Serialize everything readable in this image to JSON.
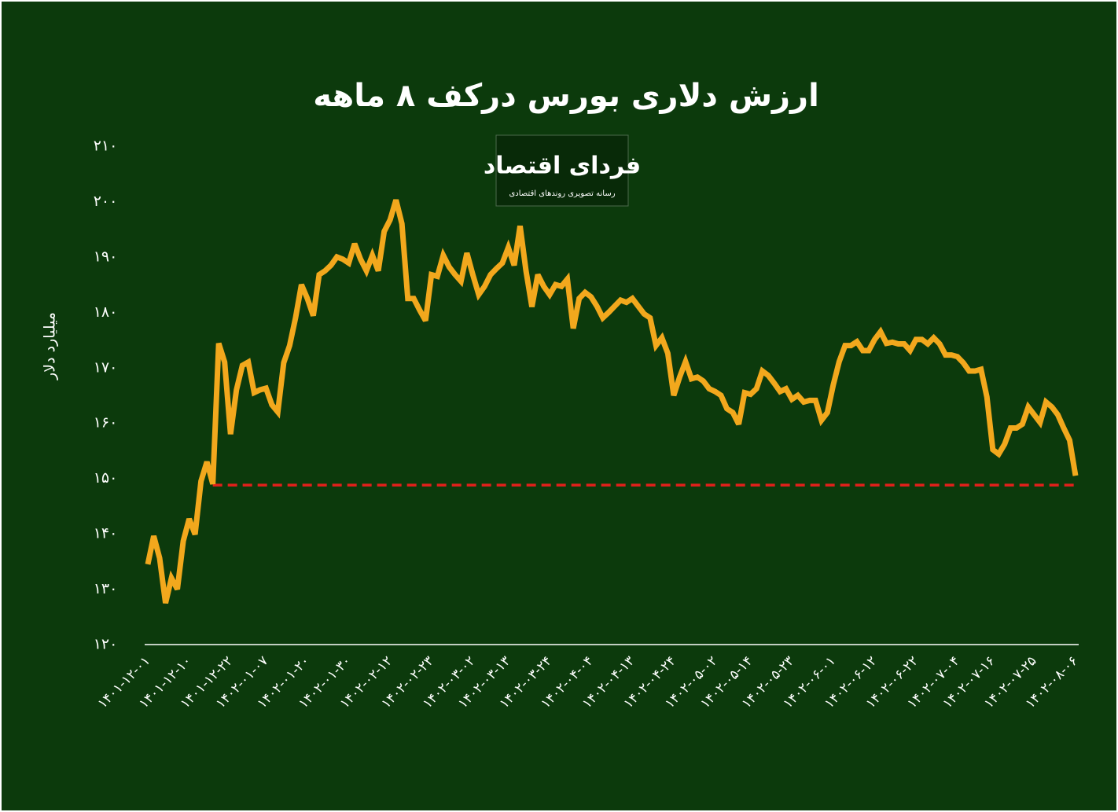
{
  "chart_data": {
    "type": "line",
    "title": "ارزش دلاری بورس درکف ۸ ماهه",
    "y_label": "میلیارد دلار",
    "logo": {
      "title": "فردای اقتصاد",
      "subtitle": "رسانه تصویری روندهای اقتصادی"
    },
    "color": "#f2a81d",
    "background": "#0c3a0c",
    "ylim": [
      120,
      210
    ],
    "yticks": [
      {
        "value": 120,
        "label": "۱۲۰"
      },
      {
        "value": 130,
        "label": "۱۳۰"
      },
      {
        "value": 140,
        "label": "۱۴۰"
      },
      {
        "value": 150,
        "label": "۱۵۰"
      },
      {
        "value": 160,
        "label": "۱۶۰"
      },
      {
        "value": 170,
        "label": "۱۷۰"
      },
      {
        "value": 180,
        "label": "۱۸۰"
      },
      {
        "value": 190,
        "label": "۱۹۰"
      },
      {
        "value": 200,
        "label": "۲۰۰"
      },
      {
        "value": 210,
        "label": "۲۱۰"
      }
    ],
    "reference_line": {
      "value": 148.8,
      "start_index": 11,
      "color": "#e3201b"
    },
    "categories": [
      "۱۴۰۱-۱۲-۰۱",
      null,
      null,
      null,
      null,
      null,
      null,
      "۱۴۰۱-۱۲-۱۰",
      null,
      null,
      null,
      null,
      null,
      null,
      "۱۴۰۱-۱۲-۲۲",
      null,
      null,
      null,
      null,
      null,
      "۱۴۰۲-۰۱-۰۷",
      null,
      null,
      null,
      null,
      null,
      null,
      "۱۴۰۲-۰۱-۲۰",
      null,
      null,
      null,
      null,
      null,
      null,
      "۱۴۰۲-۰۱-۳۰",
      null,
      null,
      null,
      null,
      null,
      null,
      "۱۴۰۲-۰۲-۱۲",
      null,
      null,
      null,
      null,
      null,
      null,
      "۱۴۰۲-۰۲-۲۳",
      null,
      null,
      null,
      null,
      null,
      null,
      "۱۴۰۲-۰۳-۰۲",
      null,
      null,
      null,
      null,
      null,
      "۱۴۰۲-۰۳-۱۳",
      null,
      null,
      null,
      null,
      null,
      null,
      "۱۴۰۲-۰۳-۲۴",
      null,
      null,
      null,
      null,
      null,
      null,
      "۱۴۰۲-۰۴-۰۴",
      null,
      null,
      null,
      null,
      null,
      null,
      "۱۴۰۲-۰۴-۱۳",
      null,
      null,
      null,
      null,
      null,
      null,
      "۱۴۰۲-۰۴-۲۴",
      null,
      null,
      null,
      null,
      null,
      null,
      "۱۴۰۲-۰۵-۰۲",
      null,
      null,
      null,
      null,
      null,
      "۱۴۰۲-۰۵-۱۴",
      null,
      null,
      null,
      null,
      null,
      null,
      "۱۴۰۲-۰۵-۲۳",
      null,
      null,
      null,
      null,
      null,
      null,
      "۱۴۰۲-۰۶-۰۱",
      null,
      null,
      null,
      null,
      null,
      null,
      "۱۴۰۲-۰۶-۱۲",
      null,
      null,
      null,
      null,
      null,
      null,
      "۱۴۰۲-۰۶-۲۲",
      null,
      null,
      null,
      null,
      null,
      null,
      "۱۴۰۲-۰۷-۰۴",
      null,
      null,
      null,
      null,
      null,
      "۱۴۰۲-۰۷-۱۶",
      null,
      null,
      null,
      null,
      null,
      null,
      "۱۴۰۲-۰۷-۲۵",
      null,
      null,
      null,
      null,
      null,
      null,
      "۱۴۰۲-۰۸-۰۶"
    ],
    "values": [
      134.5,
      139.6,
      135.6,
      127.5,
      132,
      130,
      138.7,
      142.7,
      139.9,
      149.5,
      153,
      149,
      174.4,
      171,
      158,
      166,
      170.4,
      171,
      165.5,
      166,
      166.3,
      163.3,
      162,
      170.9,
      174,
      179,
      185,
      182.5,
      179.4,
      186.8,
      187.5,
      188.5,
      190,
      189.6,
      188.9,
      192.4,
      189.6,
      187.5,
      190.3,
      187.5,
      194.6,
      196.7,
      200.3,
      196,
      182.5,
      182.5,
      180.4,
      178.5,
      186.8,
      186.5,
      190.3,
      188.2,
      186.8,
      185.6,
      190.7,
      186.8,
      183.2,
      184.7,
      186.8,
      187.9,
      188.9,
      191.7,
      188.5,
      195.6,
      187.5,
      181,
      186.8,
      184.7,
      183.2,
      185,
      184.7,
      186,
      177.1,
      182.5,
      183.6,
      182.8,
      181.1,
      179,
      180,
      181.1,
      182.2,
      181.8,
      182.5,
      181.1,
      179.7,
      179,
      174,
      175.4,
      172.6,
      165,
      168.3,
      171.1,
      168,
      168.3,
      167.6,
      166.2,
      165.7,
      165,
      162.6,
      161.9,
      159.8,
      165.5,
      165.2,
      166.2,
      169.4,
      168.6,
      167.2,
      165.7,
      166.2,
      164.3,
      165,
      163.8,
      164.1,
      164.1,
      160.5,
      161.9,
      166.9,
      171.1,
      174,
      174,
      174.7,
      173.1,
      173.1,
      175.1,
      176.5,
      174.4,
      174.6,
      174.3,
      174.3,
      173.1,
      175.1,
      175.1,
      174.3,
      175.4,
      174.3,
      172.3,
      172.3,
      172,
      170.9,
      169.4,
      169.4,
      169.7,
      164.7,
      155.2,
      154.4,
      156.2,
      159.1,
      159.1,
      159.8,
      162.9,
      161.5,
      160.1,
      163.8,
      162.9,
      161.5,
      159.1,
      156.9,
      150.5
    ]
  }
}
